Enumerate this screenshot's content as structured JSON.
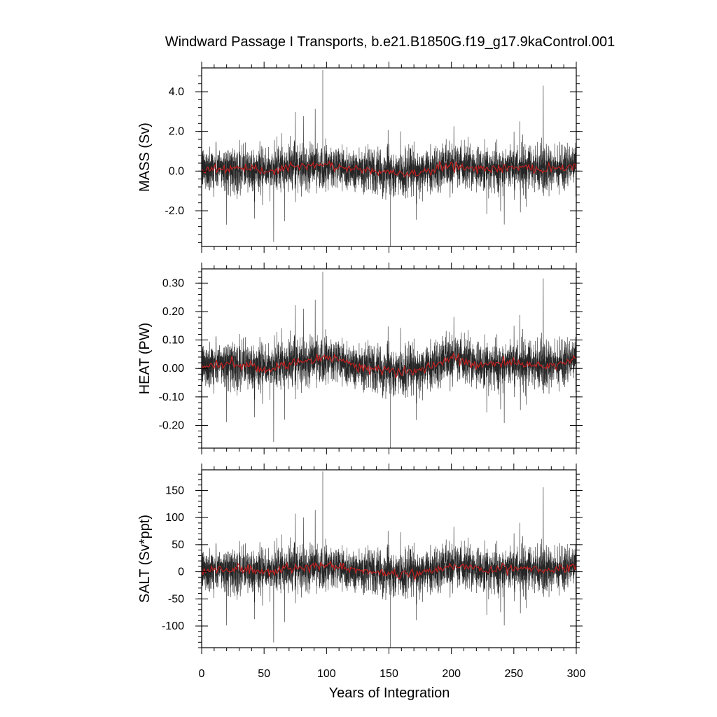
{
  "chart_data": {
    "title": "Windward Passage I Transports, b.e21.B1850G.f19_g17.9kaControl.001",
    "xlabel": "Years of Integration",
    "xlim": [
      0,
      300
    ],
    "xticks": [
      0,
      50,
      100,
      150,
      200,
      250,
      300
    ],
    "xtick_labels": [
      "0",
      "50",
      "100",
      "150",
      "200",
      "250",
      "300"
    ],
    "line_colors": {
      "raw": "#000000",
      "smoothed": "#cc1f1f"
    },
    "panels": [
      {
        "type": "line",
        "ylabel": "MASS (Sv)",
        "ylim": [
          -3.8,
          5.2
        ],
        "yticks": [
          -2.0,
          0.0,
          2.0,
          4.0
        ],
        "ytick_labels": [
          "-2.0",
          "0.0",
          "2.0",
          "4.0"
        ],
        "mean": 0.1,
        "noise_sd": 0.55,
        "peak_max": 5.1,
        "peak_min": -3.8,
        "series": [
          {
            "name": "",
            "x": [
              0,
              25,
              50,
              75,
              100,
              125,
              150,
              175,
              200,
              225,
              250,
              275,
              300
            ],
            "values": [
              0.1,
              0.15,
              0.0,
              0.2,
              0.3,
              0.1,
              -0.1,
              -0.1,
              0.3,
              0.1,
              0.2,
              0.1,
              0.3
            ]
          }
        ]
      },
      {
        "type": "line",
        "ylabel": "HEAT (PW)",
        "ylim": [
          -0.28,
          0.35
        ],
        "yticks": [
          -0.2,
          -0.1,
          0.0,
          0.1,
          0.2,
          0.3
        ],
        "ytick_labels": [
          "-0.20",
          "-0.10",
          "0.00",
          "0.10",
          "0.20",
          "0.30"
        ],
        "mean": 0.02,
        "noise_sd": 0.04,
        "peak_max": 0.34,
        "peak_min": -0.28,
        "series": [
          {
            "name": "",
            "x": [
              0,
              25,
              50,
              75,
              100,
              125,
              150,
              175,
              200,
              225,
              250,
              275,
              300
            ],
            "values": [
              0.01,
              0.02,
              0.0,
              0.02,
              0.04,
              0.01,
              -0.01,
              -0.01,
              0.04,
              0.01,
              0.02,
              0.01,
              0.03
            ]
          }
        ]
      },
      {
        "type": "line",
        "ylabel": "SALT (Sv*ppt)",
        "ylim": [
          -140,
          188
        ],
        "yticks": [
          -100,
          -50,
          0,
          50,
          100,
          150
        ],
        "ytick_labels": [
          "-100",
          "-50",
          "0",
          "50",
          "100",
          "150"
        ],
        "mean": 3,
        "noise_sd": 20,
        "peak_max": 185,
        "peak_min": -140,
        "series": [
          {
            "name": "",
            "x": [
              0,
              25,
              50,
              75,
              100,
              125,
              150,
              175,
              200,
              225,
              250,
              275,
              300
            ],
            "values": [
              2,
              5,
              0,
              6,
              12,
              3,
              -3,
              -4,
              12,
              3,
              6,
              3,
              10
            ]
          }
        ]
      }
    ]
  }
}
